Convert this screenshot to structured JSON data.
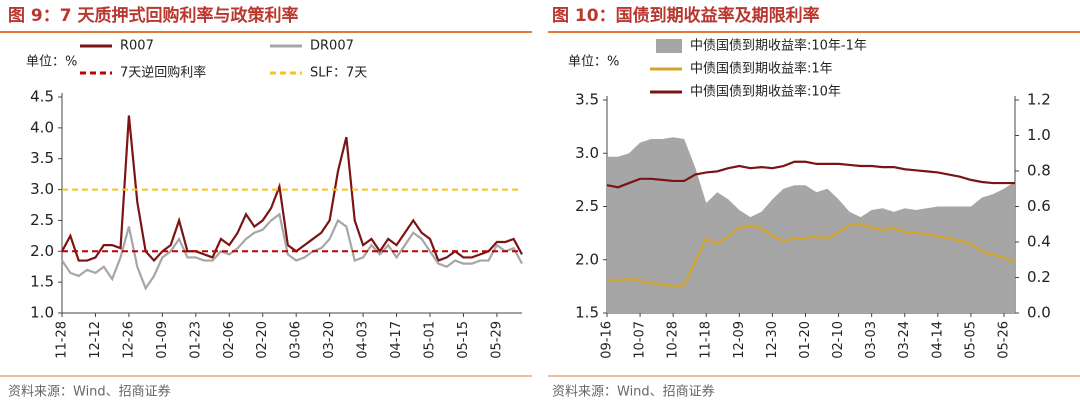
{
  "chart_data": [
    {
      "type": "line",
      "title": "图 9：7 天质押式回购利率与政策利率",
      "unit_label": "单位：%",
      "source": "资料来源：Wind、招商证券",
      "categories": [
        "11-28",
        null,
        null,
        null,
        "12-12",
        null,
        null,
        null,
        "12-26",
        null,
        null,
        null,
        "01-09",
        null,
        null,
        null,
        "01-23",
        null,
        null,
        null,
        "02-06",
        null,
        null,
        null,
        "02-20",
        null,
        null,
        null,
        "03-06",
        null,
        null,
        null,
        "03-20",
        null,
        null,
        null,
        "04-03",
        null,
        null,
        null,
        "04-17",
        null,
        null,
        null,
        "05-01",
        null,
        null,
        null,
        "05-15",
        null,
        null,
        null,
        "05-29",
        null,
        null,
        null
      ],
      "series": [
        {
          "name": "R007",
          "color": "#7b1515",
          "values": [
            2.0,
            2.25,
            1.85,
            1.85,
            1.9,
            2.1,
            2.1,
            2.05,
            4.2,
            2.8,
            2.0,
            1.85,
            2.0,
            2.1,
            2.5,
            2.0,
            2.0,
            1.95,
            1.9,
            2.2,
            2.1,
            2.3,
            2.6,
            2.4,
            2.5,
            2.7,
            3.05,
            2.1,
            2.0,
            2.1,
            2.2,
            2.3,
            2.5,
            3.3,
            3.85,
            2.5,
            2.1,
            2.2,
            2.0,
            2.2,
            2.1,
            2.3,
            2.5,
            2.3,
            2.2,
            1.85,
            1.9,
            2.0,
            1.9,
            1.9,
            1.95,
            2.0,
            2.15,
            2.15,
            2.2,
            1.95
          ]
        },
        {
          "name": "DR007",
          "color": "#a6a6a6",
          "values": [
            1.85,
            1.65,
            1.6,
            1.7,
            1.65,
            1.75,
            1.55,
            1.9,
            2.4,
            1.75,
            1.4,
            1.6,
            1.9,
            2.0,
            2.2,
            1.9,
            1.9,
            1.85,
            1.85,
            2.0,
            1.95,
            2.05,
            2.2,
            2.3,
            2.35,
            2.5,
            2.6,
            1.95,
            1.85,
            1.9,
            2.0,
            2.05,
            2.2,
            2.5,
            2.4,
            1.85,
            1.9,
            2.1,
            1.95,
            2.1,
            1.9,
            2.1,
            2.3,
            2.2,
            2.0,
            1.8,
            1.75,
            1.85,
            1.8,
            1.8,
            1.85,
            1.85,
            2.1,
            2.0,
            2.05,
            1.8
          ]
        }
      ],
      "reference_lines": [
        {
          "name": "7天逆回购利率",
          "value": 2.0,
          "color": "#c00000"
        },
        {
          "name": "SLF：7天",
          "value": 3.0,
          "color": "#f5c518"
        }
      ],
      "ylim": [
        1.0,
        4.5
      ],
      "yticks": [
        {
          "value": 1.0,
          "label": "1.0"
        },
        1.5,
        {
          "value": 2.0,
          "label": "2.0"
        },
        2.5,
        {
          "value": 3.0,
          "label": "3.0"
        },
        3.5,
        {
          "value": 4.0,
          "label": "4.0"
        },
        4.5
      ]
    },
    {
      "type": "line",
      "title": "图 10：国债到期收益率及期限利率",
      "unit_label": "单位：%",
      "source": "资料来源：Wind、招商证券",
      "categories": [
        "09-16",
        null,
        null,
        "10-07",
        null,
        null,
        "10-28",
        null,
        null,
        "11-18",
        null,
        null,
        "12-09",
        null,
        null,
        "12-30",
        null,
        null,
        "01-20",
        null,
        null,
        "02-10",
        null,
        null,
        "03-03",
        null,
        null,
        "03-24",
        null,
        null,
        "04-14",
        null,
        null,
        "05-05",
        null,
        null,
        "05-26",
        null
      ],
      "series": [
        {
          "name": "中债国债到期收益率:10年-1年",
          "color": "#a6a6a6",
          "kind": "area",
          "axis": "y2",
          "values": [
            0.88,
            0.88,
            0.9,
            0.96,
            0.98,
            0.98,
            0.99,
            0.98,
            0.82,
            0.62,
            0.68,
            0.64,
            0.58,
            0.54,
            0.57,
            0.64,
            0.7,
            0.72,
            0.72,
            0.68,
            0.7,
            0.64,
            0.57,
            0.54,
            0.58,
            0.59,
            0.57,
            0.59,
            0.58,
            0.59,
            0.6,
            0.6,
            0.6,
            0.6,
            0.65,
            0.67,
            0.7,
            0.74
          ]
        },
        {
          "name": "中债国债到期收益率:1年",
          "color": "#d4a52a",
          "values": [
            1.82,
            1.8,
            1.82,
            1.8,
            1.78,
            1.77,
            1.75,
            1.76,
            1.98,
            2.2,
            2.15,
            2.22,
            2.3,
            2.32,
            2.3,
            2.22,
            2.18,
            2.2,
            2.2,
            2.22,
            2.2,
            2.26,
            2.32,
            2.34,
            2.3,
            2.28,
            2.3,
            2.26,
            2.26,
            2.24,
            2.22,
            2.2,
            2.18,
            2.15,
            2.08,
            2.05,
            2.02,
            1.98
          ]
        },
        {
          "name": "中债国债到期收益率:10年",
          "color": "#7b1515",
          "values": [
            2.7,
            2.68,
            2.72,
            2.76,
            2.76,
            2.75,
            2.74,
            2.74,
            2.8,
            2.82,
            2.83,
            2.86,
            2.88,
            2.86,
            2.87,
            2.86,
            2.88,
            2.92,
            2.92,
            2.9,
            2.9,
            2.9,
            2.89,
            2.88,
            2.88,
            2.87,
            2.87,
            2.85,
            2.84,
            2.83,
            2.82,
            2.8,
            2.78,
            2.75,
            2.73,
            2.72,
            2.72,
            2.72
          ]
        }
      ],
      "ylim": [
        1.5,
        3.5
      ],
      "yticks": [
        1.5,
        {
          "value": 2.0,
          "label": "2.0"
        },
        2.5,
        {
          "value": 3.0,
          "label": "3.0"
        },
        3.5
      ],
      "y2lim": [
        0.0,
        1.2
      ],
      "y2ticks": [
        {
          "value": 0.0,
          "label": "0.0"
        },
        0.2,
        0.4,
        0.6,
        0.8,
        {
          "value": 1.0,
          "label": "1.0"
        },
        1.2
      ]
    }
  ]
}
